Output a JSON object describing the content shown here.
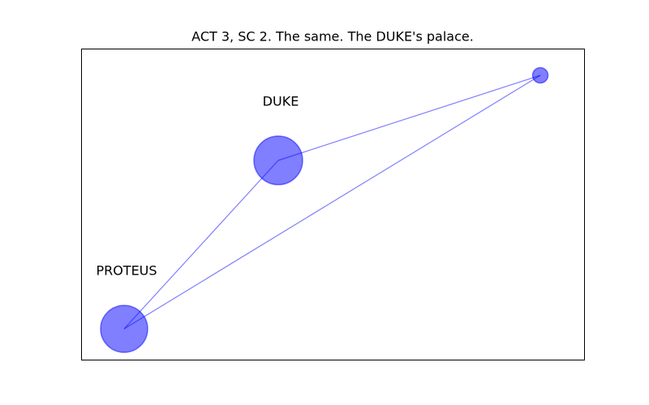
{
  "header": {
    "title": "ACT 3, SC 2. The same. The DUKE's palace."
  },
  "nodes": [
    {
      "label": "DUKE"
    },
    {
      "label": "PROTEUS"
    }
  ]
}
